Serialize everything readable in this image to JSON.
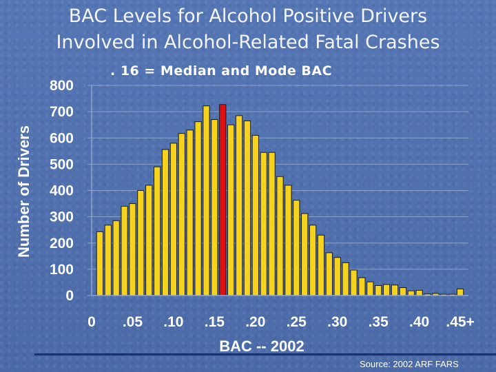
{
  "slide": {
    "title_line_1": "BAC Levels for Alcohol Positive Drivers",
    "title_line_2": "Involved in Alcohol-Related Fatal Crashes",
    "subtitle": ". 16 =  Median and Mode BAC",
    "source": "Source:  2002 ARF FARS"
  },
  "colors": {
    "bar_fill": "#f5d21e",
    "bar_highlight": "#e01010",
    "bar_stroke": "#1a1a1a",
    "grid": "#8ea3cf",
    "axis_text": "#ffffff"
  },
  "chart_data": {
    "type": "bar",
    "title": "BAC Levels for Alcohol Positive Drivers Involved in Alcohol-Related Fatal Crashes",
    "xlabel": "BAC -- 2002",
    "ylabel": "Number of Drivers",
    "ylim": [
      0,
      800
    ],
    "yticks": [
      0,
      100,
      200,
      300,
      400,
      500,
      600,
      700,
      800
    ],
    "xtick_labels": [
      "0",
      ".05",
      ".10",
      ".15",
      ".20",
      ".25",
      ".30",
      ".35",
      ".40",
      ".45+"
    ],
    "grid": true,
    "highlight_bac": 0.16,
    "x": [
      0.01,
      0.02,
      0.03,
      0.04,
      0.05,
      0.06,
      0.07,
      0.08,
      0.09,
      0.1,
      0.11,
      0.12,
      0.13,
      0.14,
      0.15,
      0.16,
      0.17,
      0.18,
      0.19,
      0.2,
      0.21,
      0.22,
      0.23,
      0.24,
      0.25,
      0.26,
      0.27,
      0.28,
      0.29,
      0.3,
      0.31,
      0.32,
      0.33,
      0.34,
      0.35,
      0.36,
      0.37,
      0.38,
      0.39,
      0.4,
      0.41,
      0.42,
      0.43,
      0.44,
      0.45
    ],
    "values": [
      243,
      268,
      285,
      340,
      350,
      400,
      420,
      490,
      556,
      580,
      617,
      630,
      662,
      722,
      670,
      727,
      650,
      685,
      665,
      610,
      545,
      545,
      453,
      420,
      363,
      312,
      268,
      230,
      163,
      145,
      125,
      97,
      68,
      52,
      38,
      42,
      40,
      30,
      18,
      20,
      6,
      8,
      5,
      5,
      25
    ]
  }
}
